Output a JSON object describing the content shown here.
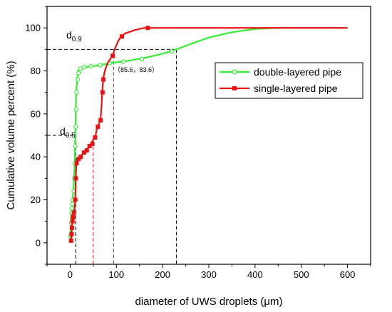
{
  "chart_data": {
    "type": "line",
    "xlabel": "diameter of UWS droplets (μm)",
    "ylabel": "Cumulative volume percent (%)",
    "xlim": [
      -50,
      650
    ],
    "ylim": [
      -10,
      110
    ],
    "x_ticks": [
      0,
      100,
      200,
      300,
      400,
      500,
      600
    ],
    "y_ticks": [
      0,
      20,
      40,
      60,
      80,
      100
    ],
    "x_tick_labels": [
      "0",
      "100",
      "200",
      "300",
      "400",
      "500",
      "600"
    ],
    "y_tick_labels": [
      "0",
      "20",
      "40",
      "60",
      "80",
      "100"
    ],
    "grid": false,
    "legend_position": "right",
    "series": [
      {
        "name": "double-layered pipe",
        "color": "#33ee33",
        "marker": "open-circle",
        "line": [
          [
            0,
            1
          ],
          [
            2,
            12
          ],
          [
            4,
            18
          ],
          [
            6,
            22
          ],
          [
            8,
            28
          ],
          [
            10,
            38
          ],
          [
            11,
            50
          ],
          [
            12,
            60
          ],
          [
            13,
            70
          ],
          [
            15,
            76
          ],
          [
            17,
            80
          ],
          [
            20,
            81
          ],
          [
            25,
            81.5
          ],
          [
            40,
            82
          ],
          [
            60,
            82.5
          ],
          [
            85.6,
            83.6
          ],
          [
            120,
            84.5
          ],
          [
            160,
            86
          ],
          [
            200,
            88
          ],
          [
            230,
            90
          ],
          [
            260,
            92.5
          ],
          [
            300,
            95.5
          ],
          [
            350,
            98
          ],
          [
            400,
            99.5
          ],
          [
            450,
            100
          ],
          [
            600,
            100
          ]
        ],
        "points": [
          [
            1,
            3
          ],
          [
            2,
            9
          ],
          [
            3,
            14
          ],
          [
            4,
            16
          ],
          [
            5,
            18
          ],
          [
            6,
            20
          ],
          [
            8,
            24
          ],
          [
            9,
            30
          ],
          [
            10,
            37
          ],
          [
            11,
            45
          ],
          [
            12,
            54
          ],
          [
            13,
            62
          ],
          [
            14,
            70
          ],
          [
            16,
            76
          ],
          [
            18,
            79
          ],
          [
            22,
            81
          ],
          [
            30,
            81.7
          ],
          [
            45,
            82.2
          ],
          [
            65,
            82.7
          ],
          [
            85.6,
            83.6
          ],
          [
            115,
            84.3
          ],
          [
            155,
            85.6
          ],
          [
            220,
            89
          ]
        ]
      },
      {
        "name": "single-layered pipe",
        "color": "#ee1111",
        "marker": "filled-square",
        "line": [
          [
            0,
            0
          ],
          [
            2,
            1
          ],
          [
            3,
            4
          ],
          [
            4,
            8
          ],
          [
            5,
            10
          ],
          [
            6,
            12
          ],
          [
            8,
            14
          ],
          [
            10,
            17
          ],
          [
            11,
            20
          ],
          [
            12,
            29
          ],
          [
            13,
            35
          ],
          [
            14,
            38
          ],
          [
            17,
            39
          ],
          [
            20,
            40
          ],
          [
            25,
            41
          ],
          [
            30,
            42
          ],
          [
            38,
            44
          ],
          [
            45,
            46
          ],
          [
            50,
            48
          ],
          [
            55,
            50
          ],
          [
            58,
            53
          ],
          [
            62,
            55
          ],
          [
            66,
            58
          ],
          [
            68,
            64
          ],
          [
            70,
            72
          ],
          [
            72,
            77
          ],
          [
            75,
            80
          ],
          [
            78,
            82
          ],
          [
            82,
            84
          ],
          [
            88,
            86
          ],
          [
            92,
            87
          ],
          [
            96,
            90
          ],
          [
            104,
            94
          ],
          [
            110,
            96
          ],
          [
            120,
            97.5
          ],
          [
            140,
            99
          ],
          [
            160,
            100
          ],
          [
            600,
            100
          ]
        ],
        "points": [
          [
            2,
            1
          ],
          [
            3,
            4
          ],
          [
            4,
            7
          ],
          [
            5,
            10
          ],
          [
            6,
            12
          ],
          [
            8,
            14
          ],
          [
            11,
            20
          ],
          [
            12,
            30
          ],
          [
            14,
            37
          ],
          [
            18,
            39
          ],
          [
            23,
            40
          ],
          [
            30,
            42
          ],
          [
            36,
            43
          ],
          [
            42,
            45
          ],
          [
            48,
            46
          ],
          [
            54,
            49
          ],
          [
            60,
            54
          ],
          [
            66,
            57
          ],
          [
            70,
            70
          ],
          [
            72,
            76
          ],
          [
            92,
            87
          ],
          [
            112,
            96
          ],
          [
            168,
            100
          ]
        ]
      }
    ],
    "guides": [
      {
        "label": "d0.9",
        "y": 90,
        "x_from": -50,
        "x_to": 230,
        "x_drop": 230,
        "color": "#000000"
      },
      {
        "label": "d0.5",
        "y": 50,
        "x_from": -50,
        "x_to": 12,
        "x_drop": 12,
        "color": "#000000"
      },
      {
        "label": "",
        "y": 50,
        "x_from": 12,
        "x_to": 12,
        "x_drop": 50,
        "color": "#ee1111"
      },
      {
        "label": "",
        "y": 90,
        "x_from": 12,
        "x_to": 12,
        "x_drop": 94,
        "color": "#ee1111"
      }
    ],
    "annotation": {
      "text": "（85.6，83.6）",
      "x": 85.6,
      "y": 83.6
    },
    "d09_label": {
      "main": "d",
      "sub": "0.9"
    },
    "d05_label": {
      "main": "d",
      "sub": "0.5"
    }
  }
}
